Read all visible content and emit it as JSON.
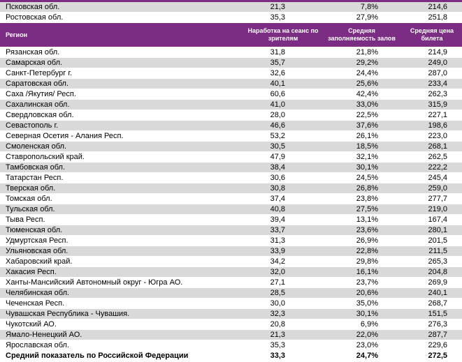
{
  "table": {
    "top_rows": [
      [
        "Псковская обл.",
        "21,3",
        "7,8%",
        "214,6"
      ],
      [
        "Ростовская обл.",
        "35,3",
        "27,9%",
        "251,8"
      ]
    ],
    "header": [
      "Регион",
      "Наработка на сеанс по зрителям",
      "Средняя заполняемость залов",
      "Средняя цена билета"
    ],
    "rows": [
      [
        "Рязанская обл.",
        "31,8",
        "21,8%",
        "214,9"
      ],
      [
        "Самарская обл.",
        "35,7",
        "29,2%",
        "249,0"
      ],
      [
        "Санкт-Петербург г.",
        "32,6",
        "24,4%",
        "287,0"
      ],
      [
        "Саратовская обл.",
        "40,1",
        "25,6%",
        "233,4"
      ],
      [
        "Саха /Якутия/ Респ.",
        "60,6",
        "42,4%",
        "262,3"
      ],
      [
        "Сахалинская обл.",
        "41,0",
        "33,0%",
        "315,9"
      ],
      [
        "Свердловская обл.",
        "28,0",
        "22,5%",
        "227,1"
      ],
      [
        "Севастополь г.",
        "46,6",
        "37,6%",
        "198,6"
      ],
      [
        "Северная Осетия - Алания Респ.",
        "53,2",
        "26,1%",
        "223,0"
      ],
      [
        "Смоленская обл.",
        "30,5",
        "18,5%",
        "268,1"
      ],
      [
        "Ставропольский край.",
        "47,9",
        "32,1%",
        "262,5"
      ],
      [
        "Тамбовская обл.",
        "38,4",
        "30,1%",
        "222,2"
      ],
      [
        "Татарстан Респ.",
        "30,6",
        "24,5%",
        "245,4"
      ],
      [
        "Тверская обл.",
        "30,8",
        "26,8%",
        "259,0"
      ],
      [
        "Томская обл.",
        "37,4",
        "23,8%",
        "277,7"
      ],
      [
        "Тульская обл.",
        "40,8",
        "27,5%",
        "219,0"
      ],
      [
        "Тыва Респ.",
        "39,4",
        "13,1%",
        "167,4"
      ],
      [
        "Тюменская обл.",
        "33,7",
        "23,6%",
        "280,1"
      ],
      [
        "Удмуртская Респ.",
        "31,3",
        "26,9%",
        "201,5"
      ],
      [
        "Ульяновская обл.",
        "33,9",
        "22,8%",
        "211,5"
      ],
      [
        "Хабаровский край.",
        "34,2",
        "29,8%",
        "265,3"
      ],
      [
        "Хакасия Респ.",
        "32,0",
        "16,1%",
        "204,8"
      ],
      [
        "Ханты-Мансийский Автономный округ - Югра АО.",
        "27,1",
        "23,7%",
        "269,9"
      ],
      [
        "Челябинская обл.",
        "28,5",
        "20,6%",
        "240,1"
      ],
      [
        "Чеченская Респ.",
        "30,0",
        "35,0%",
        "268,7"
      ],
      [
        "Чувашская Республика - Чувашия.",
        "32,3",
        "30,1%",
        "151,5"
      ],
      [
        "Чукотский АО.",
        "20,8",
        "6,9%",
        "276,3"
      ],
      [
        "Ямало-Ненецкий АО.",
        "21,3",
        "22,0%",
        "287,7"
      ],
      [
        "Ярославская обл.",
        "35,3",
        "23,0%",
        "229,6"
      ]
    ],
    "total": [
      "Средний показатель по Российской Федерации",
      "33,3",
      "24,7%",
      "272,5"
    ]
  }
}
